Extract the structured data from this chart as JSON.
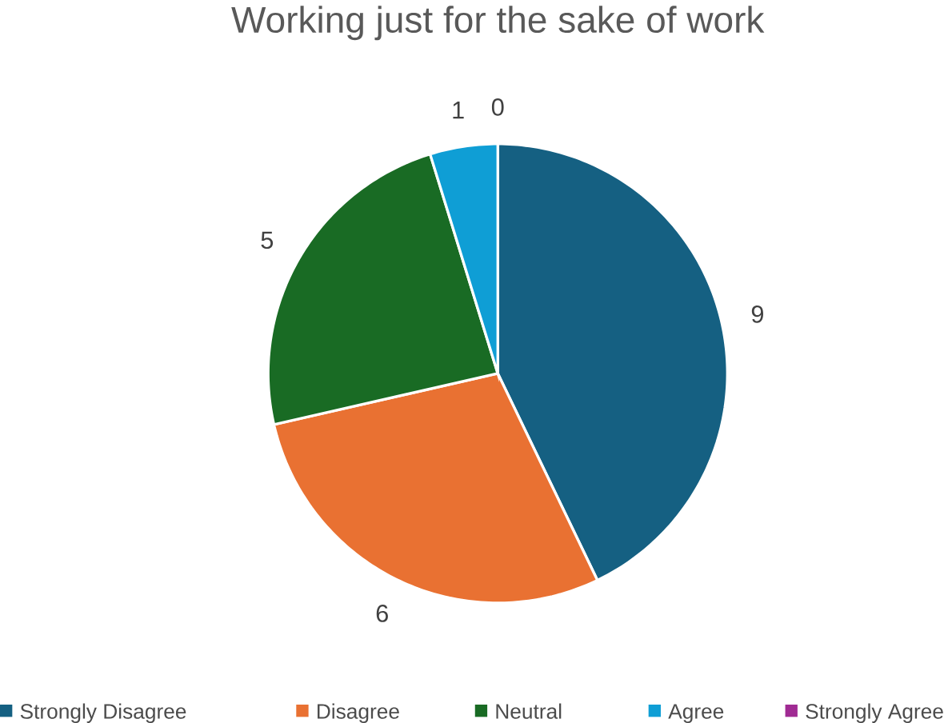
{
  "chart_data": {
    "type": "pie",
    "title": "Working just for the sake of work",
    "categories": [
      "Strongly Disagree",
      "Disagree",
      "Neutral",
      "Agree",
      "Strongly Agree"
    ],
    "values": [
      9,
      6,
      5,
      1,
      0
    ],
    "colors": [
      "#156082",
      "#e97132",
      "#196b24",
      "#0f9ed5",
      "#a02b93"
    ],
    "value_labels": [
      "9",
      "6",
      "5",
      "1",
      "0"
    ],
    "legend": "bottom"
  }
}
